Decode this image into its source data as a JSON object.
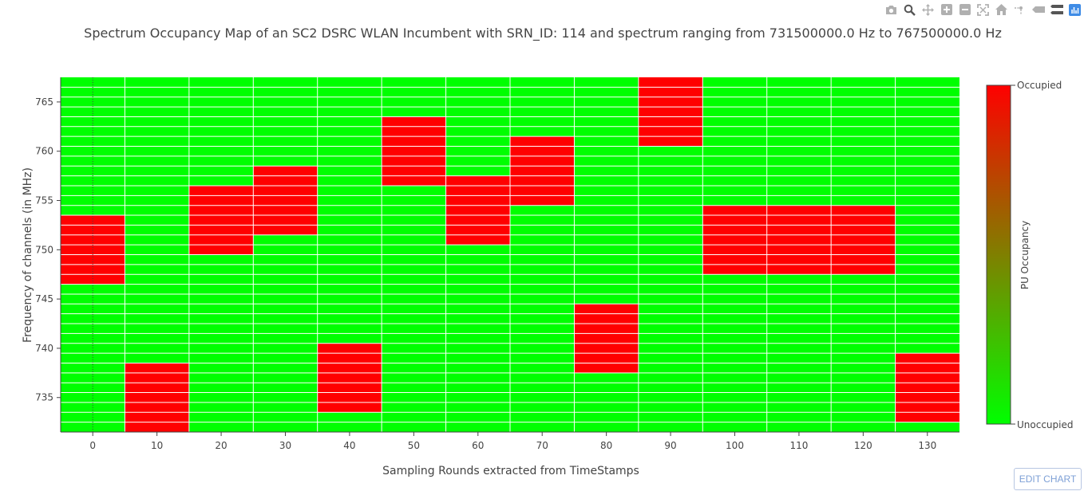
{
  "modebar": {
    "buttons": [
      "camera-icon",
      "zoom-icon",
      "pan-icon",
      "zoom-in-icon",
      "zoom-out-icon",
      "autoscale-icon",
      "reset-axes-icon",
      "spike-lines-icon",
      "hover-closest-icon",
      "hover-compare-icon",
      "plotly-logo-icon"
    ]
  },
  "edit_chart_label": "EDIT CHART",
  "chart_data": {
    "type": "heatmap",
    "title": "Spectrum Occupancy Map of an SC2 DSRC WLAN Incumbent with SRN_ID: 114 and spectrum ranging from 731500000.0 Hz to 767500000.0 Hz",
    "xlabel": "Sampling Rounds extracted from TimeStamps",
    "ylabel": "Frequency of channels (in MHz)",
    "x_ticks": [
      0,
      10,
      20,
      30,
      40,
      50,
      60,
      70,
      80,
      90,
      100,
      110,
      120,
      130
    ],
    "y_ticks": [
      735,
      740,
      745,
      750,
      755,
      760,
      765
    ],
    "x_range": [
      -5,
      135
    ],
    "y_range": [
      731.5,
      767.5
    ],
    "column_width": 10,
    "channel_start_mhz": 732,
    "channel_end_mhz": 767,
    "channel_step_mhz": 1,
    "colorscale": {
      "low": "#00ff00",
      "high": "#ff0000"
    },
    "colorbar": {
      "title": "PU Occupancy",
      "max_label": "Occupied",
      "min_label": "Unoccupied"
    },
    "occupied_blocks": [
      {
        "round": 0,
        "freq_from_mhz": 747,
        "freq_to_mhz": 753
      },
      {
        "round": 10,
        "freq_from_mhz": 732,
        "freq_to_mhz": 738
      },
      {
        "round": 20,
        "freq_from_mhz": 750,
        "freq_to_mhz": 756
      },
      {
        "round": 30,
        "freq_from_mhz": 752,
        "freq_to_mhz": 758
      },
      {
        "round": 40,
        "freq_from_mhz": 734,
        "freq_to_mhz": 740
      },
      {
        "round": 50,
        "freq_from_mhz": 757,
        "freq_to_mhz": 763
      },
      {
        "round": 60,
        "freq_from_mhz": 751,
        "freq_to_mhz": 757
      },
      {
        "round": 70,
        "freq_from_mhz": 755,
        "freq_to_mhz": 761
      },
      {
        "round": 80,
        "freq_from_mhz": 738,
        "freq_to_mhz": 744
      },
      {
        "round": 90,
        "freq_from_mhz": 761,
        "freq_to_mhz": 767
      },
      {
        "round": 100,
        "freq_from_mhz": 748,
        "freq_to_mhz": 754
      },
      {
        "round": 110,
        "freq_from_mhz": 748,
        "freq_to_mhz": 754
      },
      {
        "round": 120,
        "freq_from_mhz": 748,
        "freq_to_mhz": 754
      },
      {
        "round": 130,
        "freq_from_mhz": 733,
        "freq_to_mhz": 739
      }
    ]
  }
}
